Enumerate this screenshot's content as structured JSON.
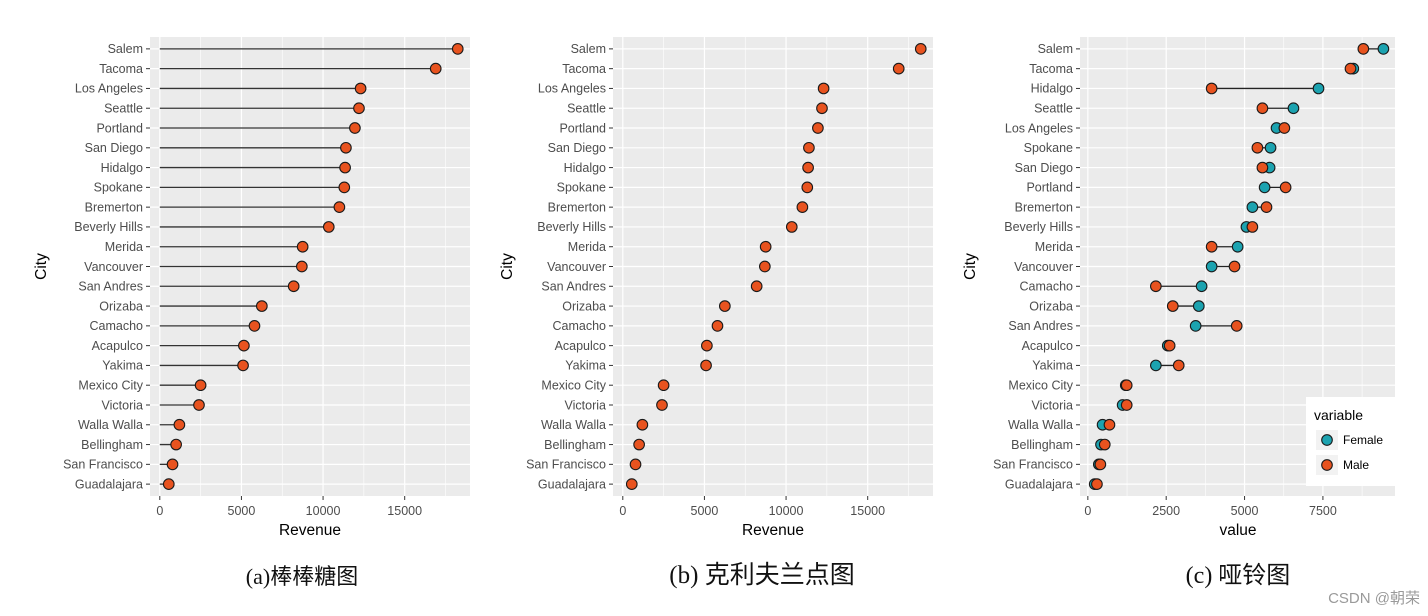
{
  "chart_data": [
    {
      "type": "bar",
      "caption": "(a)棒棒糖图",
      "xlabel": "Revenue",
      "ylabel": "City",
      "categories": [
        "Salem",
        "Tacoma",
        "Los Angeles",
        "Seattle",
        "Portland",
        "San Diego",
        "Hidalgo",
        "Spokane",
        "Bremerton",
        "Beverly Hills",
        "Merida",
        "Vancouver",
        "San Andres",
        "Orizaba",
        "Camacho",
        "Acapulco",
        "Yakima",
        "Mexico City",
        "Victoria",
        "Walla Walla",
        "Bellingham",
        "San Francisco",
        "Guadalajara"
      ],
      "values": [
        18250,
        16900,
        12300,
        12200,
        11950,
        11400,
        11350,
        11300,
        11000,
        10350,
        8750,
        8700,
        8200,
        6250,
        5800,
        5150,
        5100,
        2500,
        2400,
        1200,
        1000,
        780,
        550
      ],
      "xlim": [
        -600,
        19000
      ],
      "xticks": [
        0,
        5000,
        10000,
        15000
      ],
      "grid": true,
      "colors": {
        "panel": "#ebebeb",
        "grid": "#ffffff",
        "point": "#e8531f",
        "stem": "#333333",
        "outline": "#1a1a1a"
      }
    },
    {
      "type": "scatter",
      "caption": "(b) 克利夫兰点图",
      "xlabel": "Revenue",
      "ylabel": "City",
      "categories": [
        "Salem",
        "Tacoma",
        "Los Angeles",
        "Seattle",
        "Portland",
        "San Diego",
        "Hidalgo",
        "Spokane",
        "Bremerton",
        "Beverly Hills",
        "Merida",
        "Vancouver",
        "San Andres",
        "Orizaba",
        "Camacho",
        "Acapulco",
        "Yakima",
        "Mexico City",
        "Victoria",
        "Walla Walla",
        "Bellingham",
        "San Francisco",
        "Guadalajara"
      ],
      "values": [
        18250,
        16900,
        12300,
        12200,
        11950,
        11400,
        11350,
        11300,
        11000,
        10350,
        8750,
        8700,
        8200,
        6250,
        5800,
        5150,
        5100,
        2500,
        2400,
        1200,
        1000,
        780,
        550
      ],
      "xlim": [
        -600,
        19000
      ],
      "xticks": [
        0,
        5000,
        10000,
        15000
      ],
      "grid": true,
      "colors": {
        "panel": "#ebebeb",
        "grid": "#ffffff",
        "point": "#e8531f",
        "outline": "#1a1a1a"
      }
    },
    {
      "type": "scatter",
      "caption": "(c) 哑铃图",
      "xlabel": "value",
      "ylabel": "City",
      "categories": [
        "Salem",
        "Tacoma",
        "Hidalgo",
        "Seattle",
        "Los Angeles",
        "Spokane",
        "San Diego",
        "Portland",
        "Bremerton",
        "Beverly Hills",
        "Merida",
        "Vancouver",
        "Camacho",
        "Orizaba",
        "San Andres",
        "Acapulco",
        "Yakima",
        "Mexico City",
        "Victoria",
        "Walla Walla",
        "Bellingham",
        "San Francisco",
        "Guadalajara"
      ],
      "series": [
        {
          "name": "Female",
          "color": "#1ca3b0",
          "values": [
            9430,
            8470,
            7360,
            6560,
            6020,
            5830,
            5800,
            5640,
            5250,
            5060,
            4780,
            3950,
            3630,
            3540,
            3440,
            2550,
            2170,
            1210,
            1110,
            470,
            420,
            350,
            220
          ]
        },
        {
          "name": "Male",
          "color": "#e8531f",
          "values": [
            8790,
            8380,
            3950,
            5570,
            6270,
            5410,
            5570,
            6310,
            5700,
            5250,
            3950,
            4680,
            2170,
            2710,
            4750,
            2610,
            2900,
            1240,
            1240,
            690,
            540,
            400,
            290
          ]
        }
      ],
      "legend": {
        "title": "variable",
        "position": "bottom-right"
      },
      "xlim": [
        -250,
        9800
      ],
      "xticks": [
        0,
        2500,
        5000,
        7500
      ],
      "grid": true,
      "colors": {
        "panel": "#ebebeb",
        "grid": "#ffffff",
        "segment": "#222222",
        "outline": "#1a1a1a",
        "legend_key": "#f2f2f2"
      }
    }
  ],
  "watermark": "CSDN @朝荣"
}
